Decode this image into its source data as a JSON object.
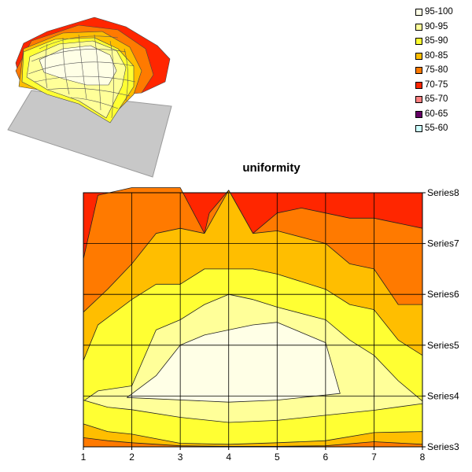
{
  "chart_data": [
    {
      "type": "surface-3d",
      "title": "",
      "colors": {
        "floor": "#c8c8c8",
        "floor_edge": "#9a9a9a"
      }
    },
    {
      "type": "contour",
      "title": "uniformity",
      "x_ticks": [
        "1",
        "2",
        "3",
        "4",
        "5",
        "6",
        "7",
        "8"
      ],
      "y_ticks": [
        "Series3",
        "Series4",
        "Series5",
        "Series6",
        "Series7",
        "Series8"
      ],
      "xlim": [
        1,
        8
      ],
      "ylim": [
        3,
        8
      ],
      "grid": true,
      "legend_position": "top-right",
      "bands": [
        {
          "label": "95-100",
          "color": "#ffffe6"
        },
        {
          "label": "90-95",
          "color": "#ffff99"
        },
        {
          "label": "85-90",
          "color": "#ffff33"
        },
        {
          "label": "80-85",
          "color": "#ffbe00"
        },
        {
          "label": "75-80",
          "color": "#ff7a00"
        },
        {
          "label": "70-75",
          "color": "#ff2600"
        },
        {
          "label": "65-70",
          "color": "#ff8080"
        },
        {
          "label": "60-65",
          "color": "#660066"
        },
        {
          "label": "55-60",
          "color": "#ccffff"
        }
      ],
      "regions": [
        {
          "band": "75-80",
          "points": [
            [
              1,
              6.7
            ],
            [
              1.3,
              7.95
            ],
            [
              2,
              8.1
            ],
            [
              3,
              8.1
            ],
            [
              3.5,
              7.2
            ],
            [
              3.6,
              7.6
            ],
            [
              4,
              8.05
            ],
            [
              4.5,
              7.2
            ],
            [
              5,
              7.6
            ],
            [
              5.5,
              7.7
            ],
            [
              6,
              7.6
            ],
            [
              6.5,
              7.5
            ],
            [
              7,
              7.5
            ],
            [
              8,
              7.3
            ],
            [
              8,
              3
            ],
            [
              1,
              3
            ]
          ]
        },
        {
          "band": "80-85",
          "points": [
            [
              1,
              5.65
            ],
            [
              1.5,
              6.1
            ],
            [
              2,
              6.6
            ],
            [
              2.5,
              7.2
            ],
            [
              3,
              7.3
            ],
            [
              3.5,
              7.2
            ],
            [
              4,
              8.05
            ],
            [
              4.5,
              7.2
            ],
            [
              5,
              7.25
            ],
            [
              6,
              7
            ],
            [
              6.5,
              6.6
            ],
            [
              7,
              6.5
            ],
            [
              7.5,
              5.8
            ],
            [
              8,
              5.8
            ],
            [
              8,
              3
            ],
            [
              1,
              3
            ]
          ]
        },
        {
          "band": "85-90",
          "points": [
            [
              1,
              4.7
            ],
            [
              1.3,
              5.4
            ],
            [
              2,
              5.9
            ],
            [
              2.5,
              6.2
            ],
            [
              3,
              6.2
            ],
            [
              3.5,
              6.5
            ],
            [
              4,
              6.5
            ],
            [
              4.5,
              6.5
            ],
            [
              5,
              6.4
            ],
            [
              6,
              6.1
            ],
            [
              6.5,
              5.8
            ],
            [
              7,
              5.7
            ],
            [
              7.5,
              5.1
            ],
            [
              8,
              4.8
            ],
            [
              8,
              3
            ],
            [
              1,
              3
            ]
          ]
        },
        {
          "band": "90-95",
          "points": [
            [
              1,
              3.9
            ],
            [
              1.3,
              4.1
            ],
            [
              2,
              4.2
            ],
            [
              2.5,
              5.3
            ],
            [
              3,
              5.5
            ],
            [
              3.5,
              5.8
            ],
            [
              4,
              6
            ],
            [
              4.5,
              5.9
            ],
            [
              5,
              5.75
            ],
            [
              6,
              5.5
            ],
            [
              6.5,
              5.1
            ],
            [
              7,
              4.8
            ],
            [
              7.5,
              4.3
            ],
            [
              8,
              3.9
            ],
            [
              8,
              3
            ],
            [
              1,
              3
            ]
          ]
        },
        {
          "band": "95-100",
          "points": [
            [
              1.9,
              3.97
            ],
            [
              2.5,
              4.4
            ],
            [
              3,
              5
            ],
            [
              3.5,
              5.2
            ],
            [
              4,
              5.3
            ],
            [
              4.5,
              5.4
            ],
            [
              5,
              5.45
            ],
            [
              6,
              5.05
            ],
            [
              6.3,
              4.05
            ],
            [
              5,
              3.92
            ],
            [
              4,
              3.88
            ]
          ]
        },
        {
          "band": "85-90",
          "points": [
            [
              1,
              3
            ],
            [
              8,
              3
            ],
            [
              8,
              3.85
            ],
            [
              7,
              3.72
            ],
            [
              6,
              3.62
            ],
            [
              5,
              3.52
            ],
            [
              4,
              3.48
            ],
            [
              3,
              3.58
            ],
            [
              2,
              3.73
            ],
            [
              1.5,
              3.78
            ],
            [
              1,
              3.92
            ]
          ]
        },
        {
          "band": "80-85",
          "points": [
            [
              1,
              3
            ],
            [
              8,
              3
            ],
            [
              8,
              3.3
            ],
            [
              7,
              3.28
            ],
            [
              6,
              3.12
            ],
            [
              5,
              3.08
            ],
            [
              4,
              3.05
            ],
            [
              3,
              3.07
            ],
            [
              2,
              3.25
            ],
            [
              1.5,
              3.3
            ],
            [
              1,
              3.45
            ]
          ]
        },
        {
          "band": "75-80",
          "points": [
            [
              1,
              3
            ],
            [
              8,
              3
            ],
            [
              8,
              3.05
            ],
            [
              7,
              3.1
            ],
            [
              6,
              3.02
            ],
            [
              5,
              3.01
            ],
            [
              4,
              3.01
            ],
            [
              3,
              3.02
            ],
            [
              2,
              3.08
            ],
            [
              1.5,
              3.12
            ],
            [
              1,
              3.18
            ]
          ]
        }
      ]
    }
  ]
}
